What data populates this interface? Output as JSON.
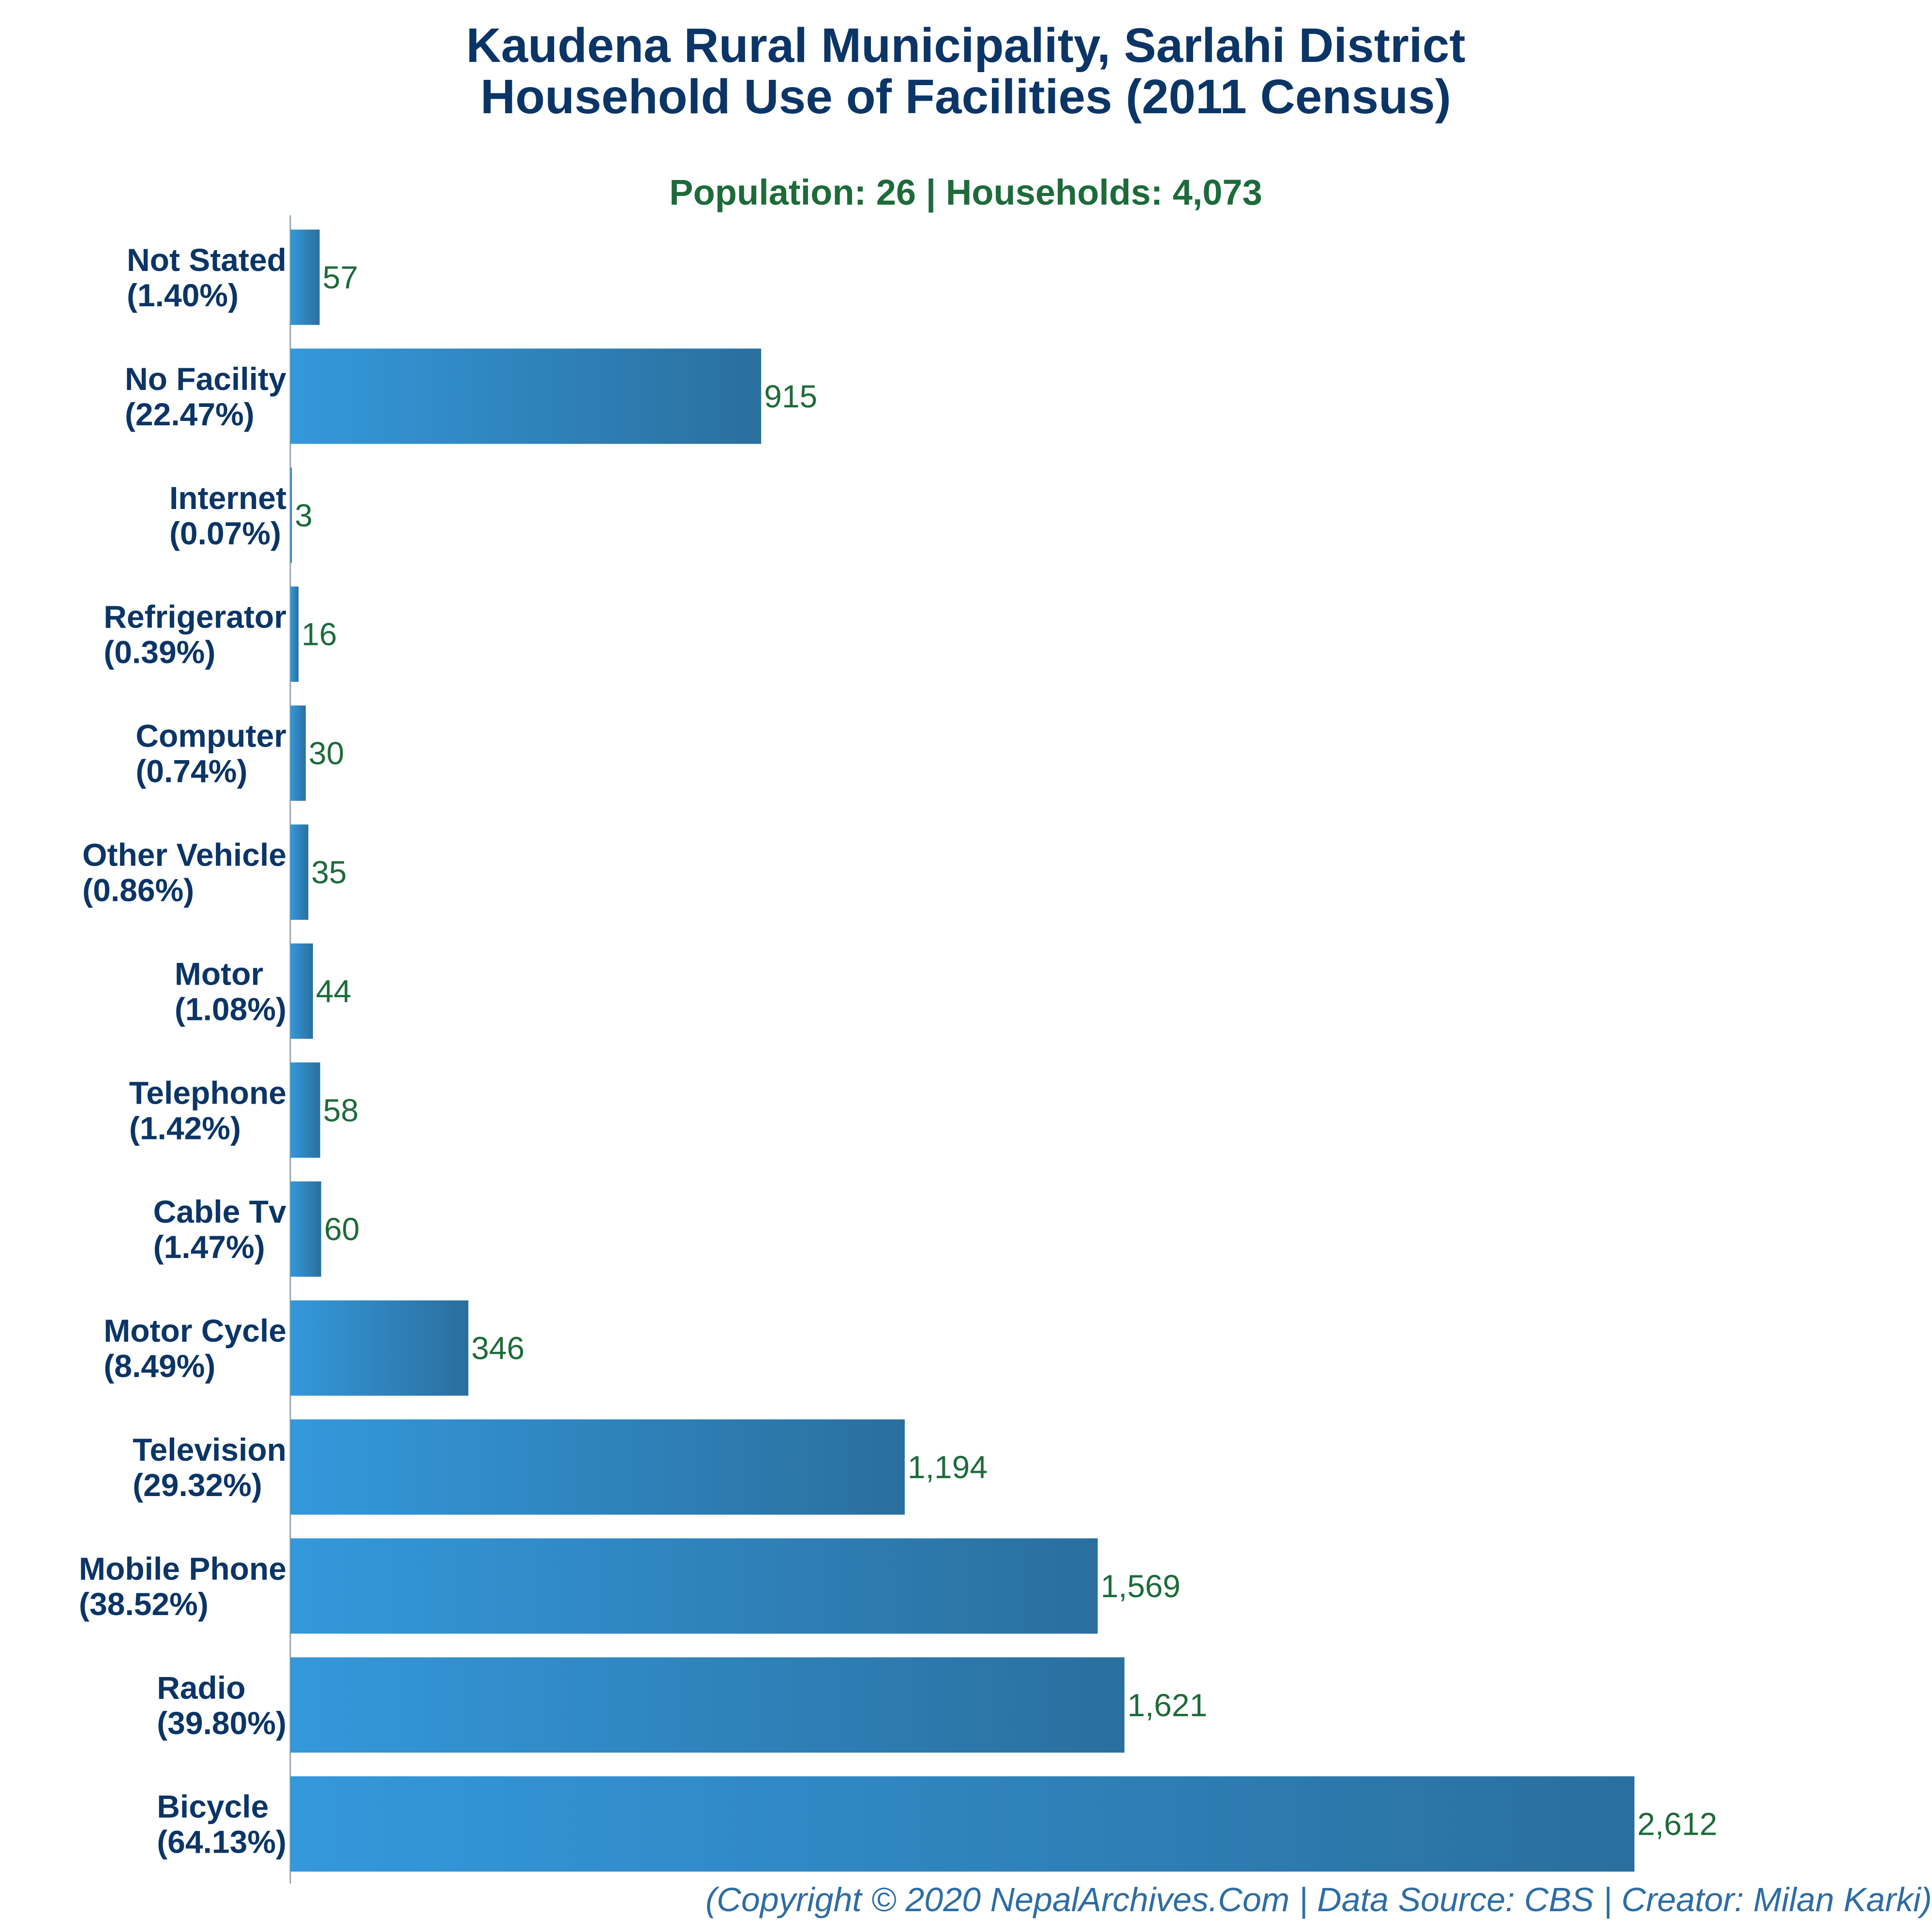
{
  "chart_data": {
    "type": "bar",
    "orientation": "horizontal",
    "title_line1": "Kaudena Rural Municipality, Sarlahi District",
    "title_line2": "Household Use of Facilities (2011 Census)",
    "subtitle": "Population: 26 | Households: 4,073",
    "footer": "(Copyright © 2020 NepalArchives.Com | Data Source: CBS | Creator: Milan Karki)",
    "categories": [
      "Not Stated",
      "No Facility",
      "Internet",
      "Refrigerator",
      "Computer",
      "Other Vehicle",
      "Motor",
      "Telephone",
      "Cable Tv",
      "Motor Cycle",
      "Television",
      "Mobile Phone",
      "Radio",
      "Bicycle"
    ],
    "percent_labels": [
      "(1.40%)",
      "(22.47%)",
      "(0.07%)",
      "(0.39%)",
      "(0.74%)",
      "(0.86%)",
      "(1.08%)",
      "(1.42%)",
      "(1.47%)",
      "(8.49%)",
      "(29.32%)",
      "(38.52%)",
      "(39.80%)",
      "(64.13%)"
    ],
    "values": [
      57,
      915,
      3,
      16,
      30,
      35,
      44,
      58,
      60,
      346,
      1194,
      1569,
      1621,
      2612
    ],
    "value_labels": [
      "57",
      "915",
      "3",
      "16",
      "30",
      "35",
      "44",
      "58",
      "60",
      "346",
      "1,194",
      "1,569",
      "1,621",
      "2,612"
    ],
    "xlim": [
      0,
      2612
    ],
    "grid": false,
    "legend": "none",
    "colors": {
      "bar_light": "#3498db",
      "bar_dark": "#2a6f9e",
      "title": "#0b3566",
      "subtitle": "#1d6b3a",
      "value": "#1d6b3a",
      "footer": "#2e6da4",
      "axis": "#9aa5b1"
    }
  }
}
